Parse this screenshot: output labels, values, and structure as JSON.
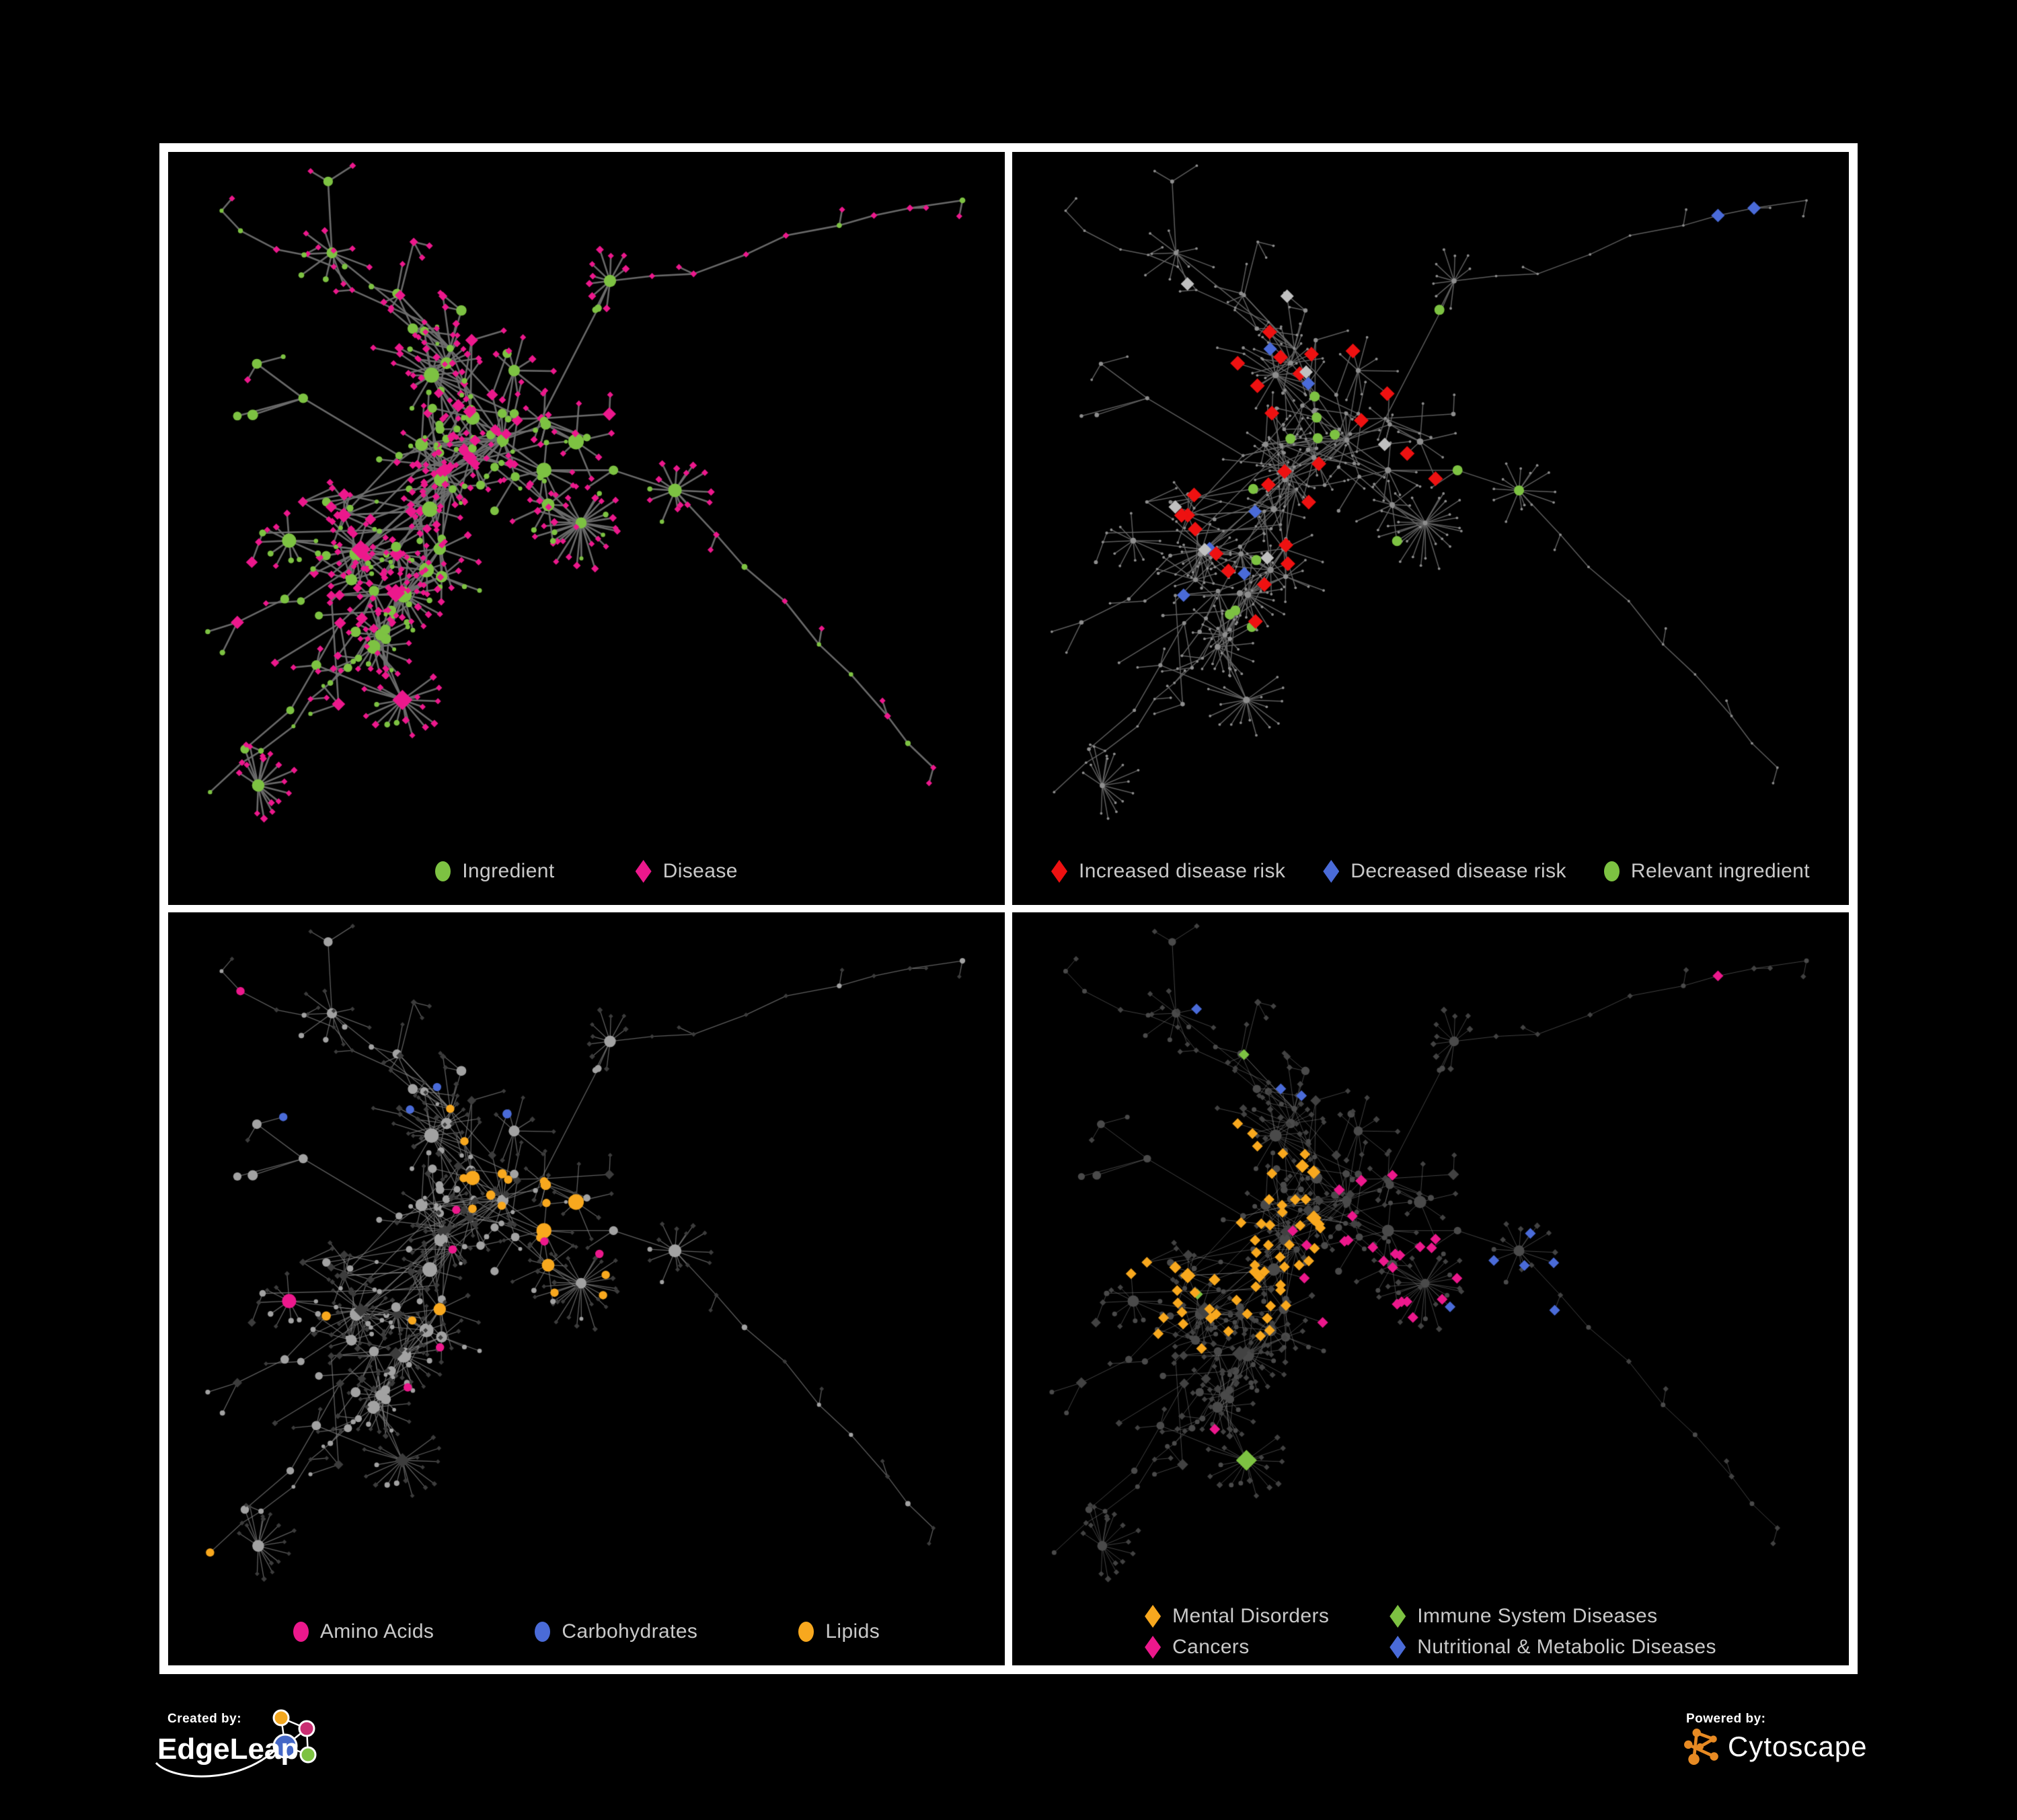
{
  "figure": {
    "background": "#000000",
    "frame_color": "#ffffff"
  },
  "colors": {
    "green": "#7dc242",
    "pink": "#ec188c",
    "red": "#ee1111",
    "blue": "#4a6bd8",
    "amber": "#f8a81e",
    "silver": "#c0c0c0",
    "legend_text": "#c9c9c9",
    "edge_p1": "#6f6f6f",
    "edge_p2": "#676767",
    "edge_p3": "#7d7d7d",
    "edge_p4": "#909090",
    "base_dot_p2": "#8e8e8e",
    "node_gray_p3": "#a2a2a2",
    "node_dark_p3": "#3c3c3c",
    "node_dark_p4": "#424242",
    "cytoscape_orange": "#e78a23",
    "edgeleap_orange": "#f2a71f",
    "edgeleap_magenta": "#c92d72",
    "edgeleap_blue": "#4467c6",
    "edgeleap_green": "#7dc242"
  },
  "panels": [
    {
      "legend": [
        {
          "label": "Ingredient",
          "shape": "circle",
          "color": "#7dc242"
        },
        {
          "label": "Disease",
          "shape": "diamond",
          "color": "#ec188c"
        }
      ]
    },
    {
      "legend": [
        {
          "label": "Increased disease risk",
          "shape": "diamond",
          "color": "#ee1111"
        },
        {
          "label": "Decreased disease risk",
          "shape": "diamond",
          "color": "#4a6bd8"
        },
        {
          "label": "Relevant ingredient",
          "shape": "circle",
          "color": "#7dc242"
        }
      ]
    },
    {
      "legend": [
        {
          "label": "Amino Acids",
          "shape": "circle",
          "color": "#ec188c"
        },
        {
          "label": "Carbohydrates",
          "shape": "circle",
          "color": "#4a6bd8"
        },
        {
          "label": "Lipids",
          "shape": "circle",
          "color": "#f8a81e"
        }
      ]
    },
    {
      "legend": [
        {
          "label": "Mental Disorders",
          "shape": "diamond",
          "color": "#f8a81e"
        },
        {
          "label": "Immune System Diseases",
          "shape": "diamond",
          "color": "#7dc242"
        },
        {
          "label": "Cancers",
          "shape": "diamond",
          "color": "#ec188c"
        },
        {
          "label": "Nutritional & Metabolic Diseases",
          "shape": "diamond",
          "color": "#4a6bd8"
        }
      ]
    }
  ],
  "branding": {
    "created_by_label": "Created by:",
    "created_by_brand": "EdgeLeap",
    "powered_by_label": "Powered by:",
    "powered_by_brand": "Cytoscape"
  }
}
